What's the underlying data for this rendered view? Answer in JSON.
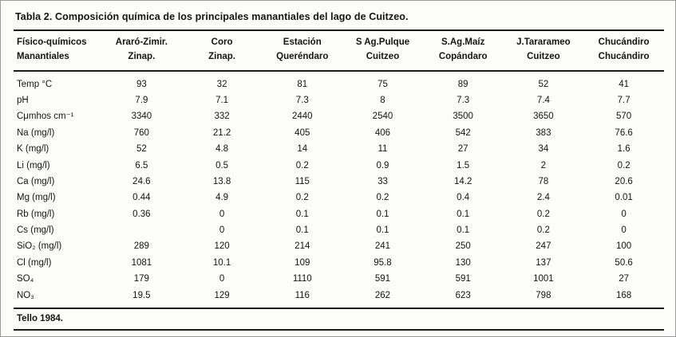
{
  "title": "Tabla 2. Composición química de los principales manantiales del lago de Cuitzeo.",
  "footer": "Tello 1984.",
  "table": {
    "columns": [
      {
        "line1": "Físico-químicos",
        "line2": "Manantiales"
      },
      {
        "line1": "Araró-Zimir.",
        "line2": "Zinap."
      },
      {
        "line1": "Coro",
        "line2": "Zinap."
      },
      {
        "line1": "Estación",
        "line2": "Queréndaro"
      },
      {
        "line1": "S Ag.Pulque",
        "line2": "Cuitzeo"
      },
      {
        "line1": "S.Ag.Maíz",
        "line2": "Copándaro"
      },
      {
        "line1": "J.Tararameo",
        "line2": "Cuitzeo"
      },
      {
        "line1": "Chucándiro",
        "line2": "Chucándiro"
      }
    ],
    "rows": [
      {
        "label": "Temp °C",
        "values": [
          "93",
          "32",
          "81",
          "75",
          "89",
          "52",
          "41"
        ]
      },
      {
        "label": "pH",
        "values": [
          "7.9",
          "7.1",
          "7.3",
          "8",
          "7.3",
          "7.4",
          "7.7"
        ]
      },
      {
        "label": "Cμmhos cm⁻¹",
        "values": [
          "3340",
          "332",
          "2440",
          "2540",
          "3500",
          "3650",
          "570"
        ]
      },
      {
        "label": "Na (mg/l)",
        "values": [
          "760",
          "21.2",
          "405",
          "406",
          "542",
          "383",
          "76.6"
        ]
      },
      {
        "label": "K (mg/l)",
        "values": [
          "52",
          "4.8",
          "14",
          "11",
          "27",
          "34",
          "1.6"
        ]
      },
      {
        "label": "Li (mg/l)",
        "values": [
          "6.5",
          "0.5",
          "0.2",
          "0.9",
          "1.5",
          "2",
          "0.2"
        ]
      },
      {
        "label": "Ca (mg/l)",
        "values": [
          "24.6",
          "13.8",
          "115",
          "33",
          "14.2",
          "78",
          "20.6"
        ]
      },
      {
        "label": "Mg (mg/l)",
        "values": [
          "0.44",
          "4.9",
          "0.2",
          "0.2",
          "0.4",
          "2.4",
          "0.01"
        ]
      },
      {
        "label": "Rb (mg/l)",
        "values": [
          "0.36",
          "0",
          "0.1",
          "0.1",
          "0.1",
          "0.2",
          "0"
        ]
      },
      {
        "label": "Cs (mg/l)",
        "values": [
          "",
          "0",
          "0.1",
          "0.1",
          "0.1",
          "0.2",
          "0"
        ]
      },
      {
        "label": "SiO₂ (mg/l)",
        "values": [
          "289",
          "120",
          "214",
          "241",
          "250",
          "247",
          "100"
        ]
      },
      {
        "label": "Cl (mg/l)",
        "values": [
          "1081",
          "10.1",
          "109",
          "95.8",
          "130",
          "137",
          "50.6"
        ]
      },
      {
        "label": "SO₄",
        "values": [
          "179",
          "0",
          "1110",
          "591",
          "591",
          "1001",
          "27"
        ]
      },
      {
        "label": "NO₃",
        "values": [
          "19.5",
          "129",
          "116",
          "262",
          "623",
          "798",
          "168"
        ]
      }
    ]
  }
}
